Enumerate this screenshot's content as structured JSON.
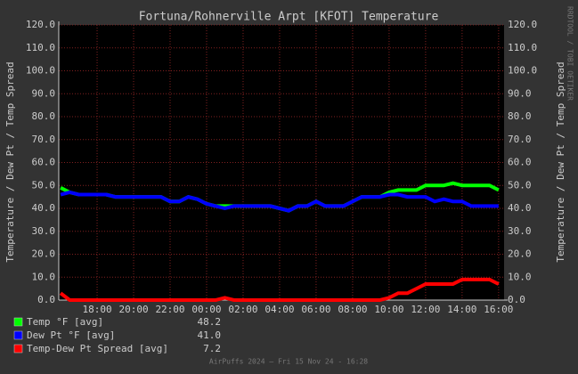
{
  "chart_data": {
    "type": "line",
    "title": "Fortuna/Rohnerville Arpt [KFOT] Temperature",
    "ylabel": "Temperature / Dew Pt / Temp Spread",
    "side_text": "RRDTOOL / TOBI OETIKER",
    "footer": "AirPuffs 2024 — Fri 15 Nov 24 - 16:28",
    "x": [
      16,
      16.5,
      17,
      17.5,
      18,
      18.5,
      19,
      19.5,
      20,
      20.5,
      21,
      21.5,
      22,
      22.5,
      23,
      23.5,
      24,
      24.5,
      25,
      25.5,
      26,
      26.5,
      27,
      27.5,
      28,
      28.5,
      29,
      29.5,
      30,
      30.5,
      31,
      31.5,
      32,
      32.5,
      33,
      33.5,
      34,
      34.5,
      35,
      35.5,
      36,
      36.5,
      37,
      37.5,
      38,
      38.5,
      39,
      39.5,
      40
    ],
    "xlim": [
      15.9,
      40.3
    ],
    "xticks": [
      {
        "value": 18,
        "label": "18:00"
      },
      {
        "value": 20,
        "label": "20:00"
      },
      {
        "value": 22,
        "label": "22:00"
      },
      {
        "value": 24,
        "label": "00:00"
      },
      {
        "value": 26,
        "label": "02:00"
      },
      {
        "value": 28,
        "label": "04:00"
      },
      {
        "value": 30,
        "label": "06:00"
      },
      {
        "value": 32,
        "label": "08:00"
      },
      {
        "value": 34,
        "label": "10:00"
      },
      {
        "value": 36,
        "label": "12:00"
      },
      {
        "value": 38,
        "label": "14:00"
      },
      {
        "value": 40,
        "label": "16:00"
      }
    ],
    "ylim": [
      0,
      120
    ],
    "yticks": [
      {
        "value": 0,
        "label": "0.0"
      },
      {
        "value": 10,
        "label": "10.0"
      },
      {
        "value": 20,
        "label": "20.0"
      },
      {
        "value": 30,
        "label": "30.0"
      },
      {
        "value": 40,
        "label": "40.0"
      },
      {
        "value": 50,
        "label": "50.0"
      },
      {
        "value": 60,
        "label": "60.0"
      },
      {
        "value": 70,
        "label": "70.0"
      },
      {
        "value": 80,
        "label": "80.0"
      },
      {
        "value": 90,
        "label": "90.0"
      },
      {
        "value": 100,
        "label": "100.0"
      },
      {
        "value": 110,
        "label": "110.0"
      },
      {
        "value": 120,
        "label": "120.0"
      }
    ],
    "grid": true,
    "series": [
      {
        "name": "Temp °F [avg]",
        "color": "#00ff00",
        "avg_label": "48.2",
        "values": [
          49,
          47,
          46,
          46,
          46,
          46,
          45,
          45,
          45,
          45,
          45,
          45,
          43,
          43,
          45,
          44,
          42,
          41,
          41,
          41,
          41,
          41,
          41,
          41,
          40,
          39,
          41,
          41,
          43,
          41,
          41,
          41,
          43,
          45,
          45,
          45,
          47,
          48,
          48,
          48,
          50,
          50,
          50,
          51,
          50,
          50,
          50,
          50,
          48
        ]
      },
      {
        "name": "Dew Pt °F [avg]",
        "color": "#0000ff",
        "avg_label": "41.0",
        "values": [
          46,
          47,
          46,
          46,
          46,
          46,
          45,
          45,
          45,
          45,
          45,
          45,
          43,
          43,
          45,
          44,
          42,
          41,
          40,
          41,
          41,
          41,
          41,
          41,
          40,
          39,
          41,
          41,
          43,
          41,
          41,
          41,
          43,
          45,
          45,
          45,
          46,
          46,
          45,
          45,
          45,
          43,
          44,
          43,
          43,
          41,
          41,
          41,
          41
        ]
      },
      {
        "name": "Temp-Dew Pt Spread [avg]",
        "color": "#ff0000",
        "avg_label": "7.2",
        "values": [
          3,
          0,
          0,
          0,
          0,
          0,
          0,
          0,
          0,
          0,
          0,
          0,
          0,
          0,
          0,
          0,
          0,
          0,
          1,
          0,
          0,
          0,
          0,
          0,
          0,
          0,
          0,
          0,
          0,
          0,
          0,
          0,
          0,
          0,
          0,
          0,
          1,
          3,
          3,
          5,
          7,
          7,
          7,
          7,
          9,
          9,
          9,
          9,
          7
        ]
      }
    ]
  }
}
